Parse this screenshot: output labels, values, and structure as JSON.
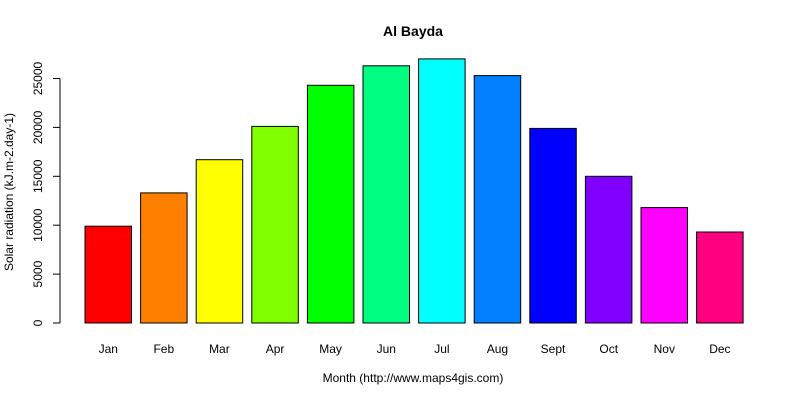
{
  "chart_data": {
    "type": "bar",
    "title": "Al Bayda",
    "xlabel": "Month (http://www.maps4gis.com)",
    "ylabel": "Solar radiation (kJ.m-2.day-1)",
    "categories": [
      "Jan",
      "Feb",
      "Mar",
      "Apr",
      "May",
      "Jun",
      "Jul",
      "Aug",
      "Sept",
      "Oct",
      "Nov",
      "Dec"
    ],
    "values": [
      9900,
      13300,
      16700,
      20100,
      24300,
      26300,
      27000,
      25300,
      19900,
      15000,
      11800,
      9300
    ],
    "colors": [
      "#FF0000",
      "#FF8000",
      "#FFFF00",
      "#80FF00",
      "#00FF00",
      "#00FF80",
      "#00FFFF",
      "#0080FF",
      "#0000FF",
      "#8000FF",
      "#FF00FF",
      "#FF0080"
    ],
    "yticks": [
      0,
      5000,
      10000,
      15000,
      20000,
      25000
    ],
    "ylim": [
      0,
      27000
    ],
    "grid": false,
    "legend": "none"
  }
}
